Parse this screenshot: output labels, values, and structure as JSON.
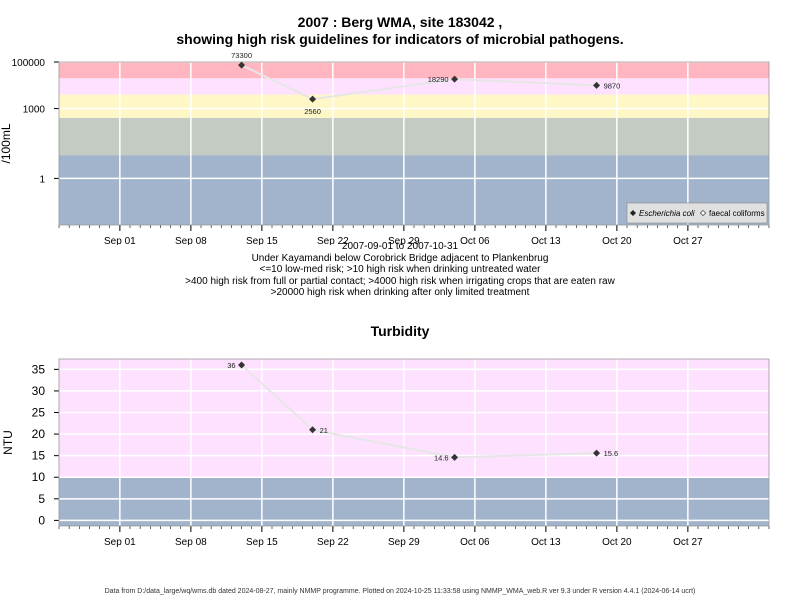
{
  "header": {
    "title_line1": "2007 : Berg WMA, site 183042 ,",
    "title_line2": "showing high risk guidelines for indicators of microbial pathogens."
  },
  "microbial_info": [
    "2007-09-01 to 2007-10-31",
    "Under Kayamandi below Corobrick Bridge adjacent to Plankenbrug",
    "<=10 low-med risk; >10 high risk when drinking untreated water",
    ">400 high risk from full or partial contact; >4000 high risk when irrigating crops that are eaten raw",
    ">20000 high risk when drinking after only limited treatment"
  ],
  "turbidity_title": "Turbidity",
  "footer": "Data from D:/data_large/wq/wms.db dated 2024-08-27, mainly NMMP programme. Plotted on 2024-10-25 11:33:58 using NMMP_WMA_web.R ver 9.3 under R version 4.4.1 (2024-06-14 ucrt)",
  "colors": {
    "band_blue": "#a2b4cb",
    "band_grey_green": "#c3cbc2",
    "band_yellow": "#fff7c6",
    "band_pink": "#fde1ff",
    "band_red": "#ffb6c1",
    "grid": "#ffffff",
    "line": "#e6e6e6",
    "point": "#333333"
  },
  "chart_data": [
    {
      "type": "scatter",
      "scale": "log10",
      "xlabel": "",
      "ylabel": "/100mL",
      "x_range": [
        "2007-08-26",
        "2007-11-04"
      ],
      "x_ticks": [
        {
          "date": "2007-09-01",
          "label": "Sep 01"
        },
        {
          "date": "2007-09-08",
          "label": "Sep 08"
        },
        {
          "date": "2007-09-15",
          "label": "Sep 15"
        },
        {
          "date": "2007-09-22",
          "label": "Sep 22"
        },
        {
          "date": "2007-09-29",
          "label": "Sep 29"
        },
        {
          "date": "2007-10-06",
          "label": "Oct 06"
        },
        {
          "date": "2007-10-13",
          "label": "Oct 13"
        },
        {
          "date": "2007-10-20",
          "label": "Oct 20"
        },
        {
          "date": "2007-10-27",
          "label": "Oct 27"
        }
      ],
      "y_ticks": [
        {
          "value": 1,
          "label": "1"
        },
        {
          "value": 1000,
          "label": "1000"
        },
        {
          "value": 100000,
          "label": "100000"
        }
      ],
      "ylim": [
        0.01,
        100000
      ],
      "bands": [
        {
          "from": 0.01,
          "to": 10,
          "color": "#a2b4cb"
        },
        {
          "from": 10,
          "to": 400,
          "color": "#c3cbc2"
        },
        {
          "from": 400,
          "to": 4000,
          "color": "#fff7c6"
        },
        {
          "from": 4000,
          "to": 20000,
          "color": "#fde1ff"
        },
        {
          "from": 20000,
          "to": 100000,
          "color": "#ffb6c1"
        }
      ],
      "series": [
        {
          "name": "Escherichia coli",
          "points": [
            {
              "date": "2007-09-13",
              "value": 73300,
              "label": "73300"
            },
            {
              "date": "2007-09-20",
              "value": 2560,
              "label": "2560"
            },
            {
              "date": "2007-10-04",
              "value": 18290,
              "label": "18290"
            },
            {
              "date": "2007-10-18",
              "value": 9870,
              "label": "9870"
            }
          ]
        }
      ],
      "legend": {
        "placement": "bottom-right",
        "entries": [
          {
            "label": "Escherichia coli",
            "marker": "filled-diamond",
            "italic": true
          },
          {
            "label": "faecal coliforms",
            "marker": "open-diamond",
            "italic": false
          }
        ]
      }
    },
    {
      "type": "scatter",
      "scale": "linear",
      "xlabel": "",
      "ylabel": "NTU",
      "x_range": [
        "2007-08-26",
        "2007-11-04"
      ],
      "x_ticks": [
        {
          "date": "2007-09-01",
          "label": "Sep 01"
        },
        {
          "date": "2007-09-08",
          "label": "Sep 08"
        },
        {
          "date": "2007-09-15",
          "label": "Sep 15"
        },
        {
          "date": "2007-09-22",
          "label": "Sep 22"
        },
        {
          "date": "2007-09-29",
          "label": "Sep 29"
        },
        {
          "date": "2007-10-06",
          "label": "Oct 06"
        },
        {
          "date": "2007-10-13",
          "label": "Oct 13"
        },
        {
          "date": "2007-10-20",
          "label": "Oct 20"
        },
        {
          "date": "2007-10-27",
          "label": "Oct 27"
        }
      ],
      "y_ticks": [
        {
          "value": 0,
          "label": "0"
        },
        {
          "value": 5,
          "label": "5"
        },
        {
          "value": 10,
          "label": "10"
        },
        {
          "value": 15,
          "label": "15"
        },
        {
          "value": 20,
          "label": "20"
        },
        {
          "value": 25,
          "label": "25"
        },
        {
          "value": 30,
          "label": "30"
        },
        {
          "value": 35,
          "label": "35"
        }
      ],
      "ylim": [
        -1.3,
        37.4
      ],
      "bands": [
        {
          "from": -1.3,
          "to": 10,
          "color": "#a2b4cb"
        },
        {
          "from": 10,
          "to": 37.4,
          "color": "#fde1ff"
        }
      ],
      "series": [
        {
          "name": "",
          "points": [
            {
              "date": "2007-09-13",
              "value": 36,
              "label": "36"
            },
            {
              "date": "2007-09-20",
              "value": 21,
              "label": "21"
            },
            {
              "date": "2007-10-04",
              "value": 14.6,
              "label": "14.6"
            },
            {
              "date": "2007-10-18",
              "value": 15.6,
              "label": "15.6"
            }
          ]
        }
      ]
    }
  ]
}
